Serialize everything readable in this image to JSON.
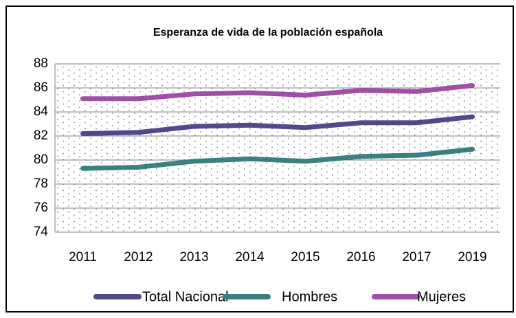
{
  "chart_data": {
    "type": "line",
    "title": "Esperanza de vida de la población española",
    "categories": [
      "2011",
      "2012",
      "2013",
      "2014",
      "2015",
      "2016",
      "2017",
      "2019"
    ],
    "series": [
      {
        "name": "Total Nacional",
        "color": "#4e4a8c",
        "values": [
          82.2,
          82.3,
          82.8,
          82.9,
          82.7,
          83.1,
          83.1,
          83.6
        ]
      },
      {
        "name": "Hombres",
        "color": "#3c7f80",
        "values": [
          79.3,
          79.4,
          79.9,
          80.1,
          79.9,
          80.3,
          80.4,
          80.9
        ]
      },
      {
        "name": "Mujeres",
        "color": "#a04fa8",
        "values": [
          85.1,
          85.1,
          85.5,
          85.6,
          85.4,
          85.8,
          85.7,
          86.2
        ]
      }
    ],
    "ylim": [
      74,
      88
    ],
    "yticks": [
      74,
      76,
      78,
      80,
      82,
      84,
      86,
      88
    ],
    "grid": true,
    "legend": "bottom"
  }
}
